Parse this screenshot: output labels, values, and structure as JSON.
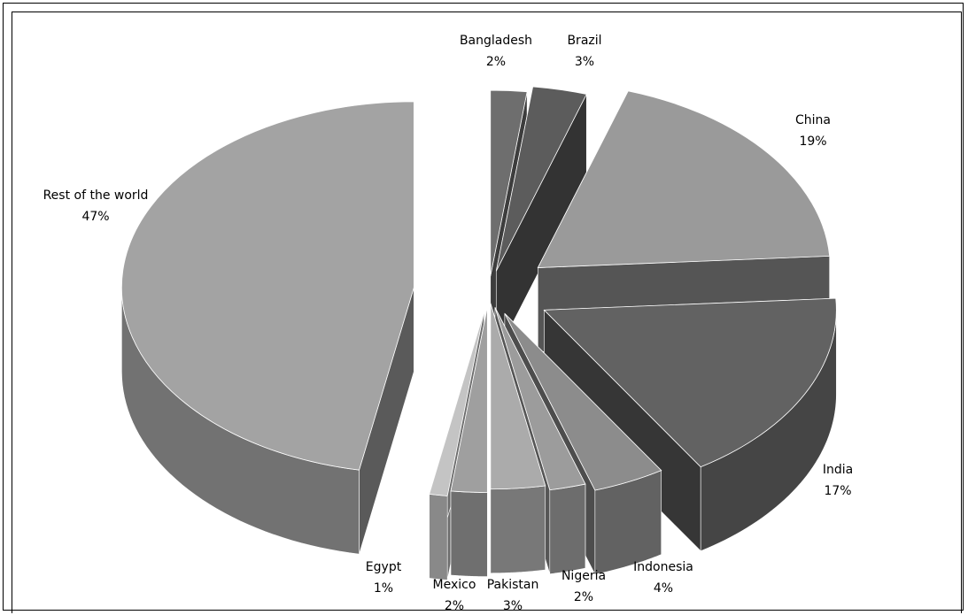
{
  "chart_data": {
    "type": "pie",
    "style": "3d-exploded",
    "categories": [
      "Bangladesh",
      "Brazil",
      "China",
      "India",
      "Indonesia",
      "Nigeria",
      "Pakistan",
      "Mexico",
      "Egypt",
      "Rest of the world"
    ],
    "values": [
      2,
      3,
      19,
      17,
      4,
      2,
      3,
      2,
      1,
      47
    ],
    "labels": [
      "2%",
      "3%",
      "19%",
      "17%",
      "4%",
      "2%",
      "3%",
      "2%",
      "1%",
      "47%"
    ],
    "colors": {
      "Bangladesh": "#6e6e6e",
      "Brazil": "#5c5c5c",
      "China": "#9a9a9a",
      "India": "#626262",
      "Indonesia": "#8c8c8c",
      "Nigeria": "#9c9c9c",
      "Pakistan": "#ababab",
      "Mexico": "#9f9f9f",
      "Egypt": "#c4c4c4",
      "Rest of the world": "#a3a3a3"
    }
  }
}
